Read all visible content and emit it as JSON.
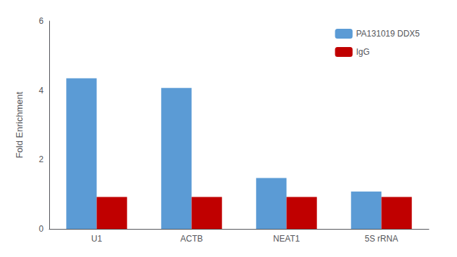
{
  "chart_data": {
    "type": "bar",
    "categories": [
      "U1",
      "ACTB",
      "NEAT1",
      "5S rRNA"
    ],
    "series": [
      {
        "name": "PA131019 DDX5",
        "color": "#5B9BD5",
        "values": [
          4.35,
          4.07,
          1.47,
          1.08
        ]
      },
      {
        "name": "IgG",
        "color": "#C00000",
        "values": [
          0.92,
          0.92,
          0.92,
          0.92
        ]
      }
    ],
    "ylabel": "Fold Enrichment",
    "ylim": [
      0,
      6
    ],
    "yticks": [
      0,
      2,
      4,
      6
    ],
    "grid": false,
    "legend": "upper right"
  }
}
